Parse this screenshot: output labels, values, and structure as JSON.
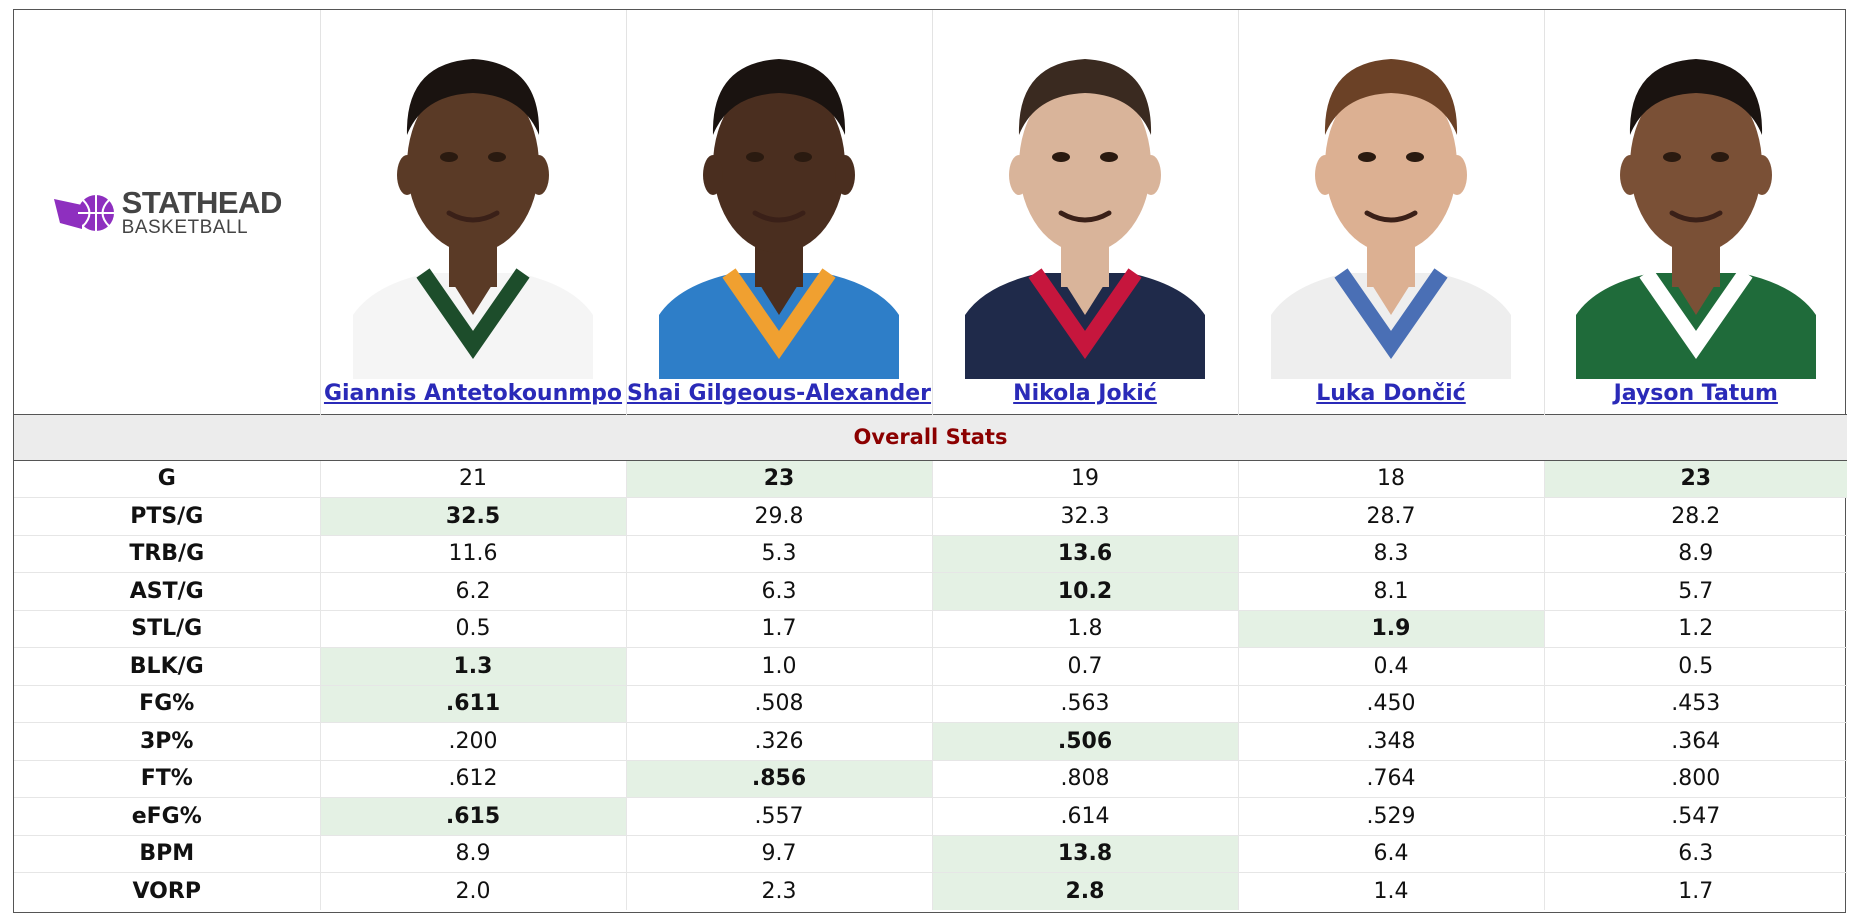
{
  "logo": {
    "line1": "STATHEAD",
    "line2": "BASKETBALL",
    "accent": "#8e2fbf"
  },
  "players": [
    {
      "name": "Giannis Antetokounmpo",
      "jersey": "#f5f5f5",
      "trim": "#1d4d2b",
      "skin": "#5a3a26",
      "hair": "#1a1310",
      "bg": "#ffffff"
    },
    {
      "name": "Shai Gilgeous-Alexander",
      "jersey": "#2e7ec8",
      "trim": "#f0a030",
      "skin": "#4a2e1f",
      "hair": "#1a1310",
      "bg": "#ffffff"
    },
    {
      "name": "Nikola Jokić",
      "jersey": "#1f2a4a",
      "trim": "#c6163d",
      "skin": "#d9b49a",
      "hair": "#3a2a20",
      "bg": "#ffffff"
    },
    {
      "name": "Luka Dončić",
      "jersey": "#eeeeee",
      "trim": "#4a6fb5",
      "skin": "#dcb092",
      "hair": "#6b4126",
      "bg": "#ffffff"
    },
    {
      "name": "Jayson Tatum",
      "jersey": "#1f6b3a",
      "trim": "#ffffff",
      "skin": "#7a5036",
      "hair": "#1a1310",
      "bg": "#ffffff"
    }
  ],
  "section_title": "Overall Stats",
  "highlight_color": "#e4f1e4",
  "stats": [
    {
      "label": "G",
      "values": [
        "21",
        "23",
        "19",
        "18",
        "23"
      ],
      "best": [
        1,
        4
      ]
    },
    {
      "label": "PTS/G",
      "values": [
        "32.5",
        "29.8",
        "32.3",
        "28.7",
        "28.2"
      ],
      "best": [
        0
      ]
    },
    {
      "label": "TRB/G",
      "values": [
        "11.6",
        "5.3",
        "13.6",
        "8.3",
        "8.9"
      ],
      "best": [
        2
      ]
    },
    {
      "label": "AST/G",
      "values": [
        "6.2",
        "6.3",
        "10.2",
        "8.1",
        "5.7"
      ],
      "best": [
        2
      ]
    },
    {
      "label": "STL/G",
      "values": [
        "0.5",
        "1.7",
        "1.8",
        "1.9",
        "1.2"
      ],
      "best": [
        3
      ]
    },
    {
      "label": "BLK/G",
      "values": [
        "1.3",
        "1.0",
        "0.7",
        "0.4",
        "0.5"
      ],
      "best": [
        0
      ]
    },
    {
      "label": "FG%",
      "values": [
        ".611",
        ".508",
        ".563",
        ".450",
        ".453"
      ],
      "best": [
        0
      ]
    },
    {
      "label": "3P%",
      "values": [
        ".200",
        ".326",
        ".506",
        ".348",
        ".364"
      ],
      "best": [
        2
      ]
    },
    {
      "label": "FT%",
      "values": [
        ".612",
        ".856",
        ".808",
        ".764",
        ".800"
      ],
      "best": [
        1
      ]
    },
    {
      "label": "eFG%",
      "values": [
        ".615",
        ".557",
        ".614",
        ".529",
        ".547"
      ],
      "best": [
        0
      ]
    },
    {
      "label": "BPM",
      "values": [
        "8.9",
        "9.7",
        "13.8",
        "6.4",
        "6.3"
      ],
      "best": [
        2
      ]
    },
    {
      "label": "VORP",
      "values": [
        "2.0",
        "2.3",
        "2.8",
        "1.4",
        "1.7"
      ],
      "best": [
        2
      ]
    }
  ]
}
